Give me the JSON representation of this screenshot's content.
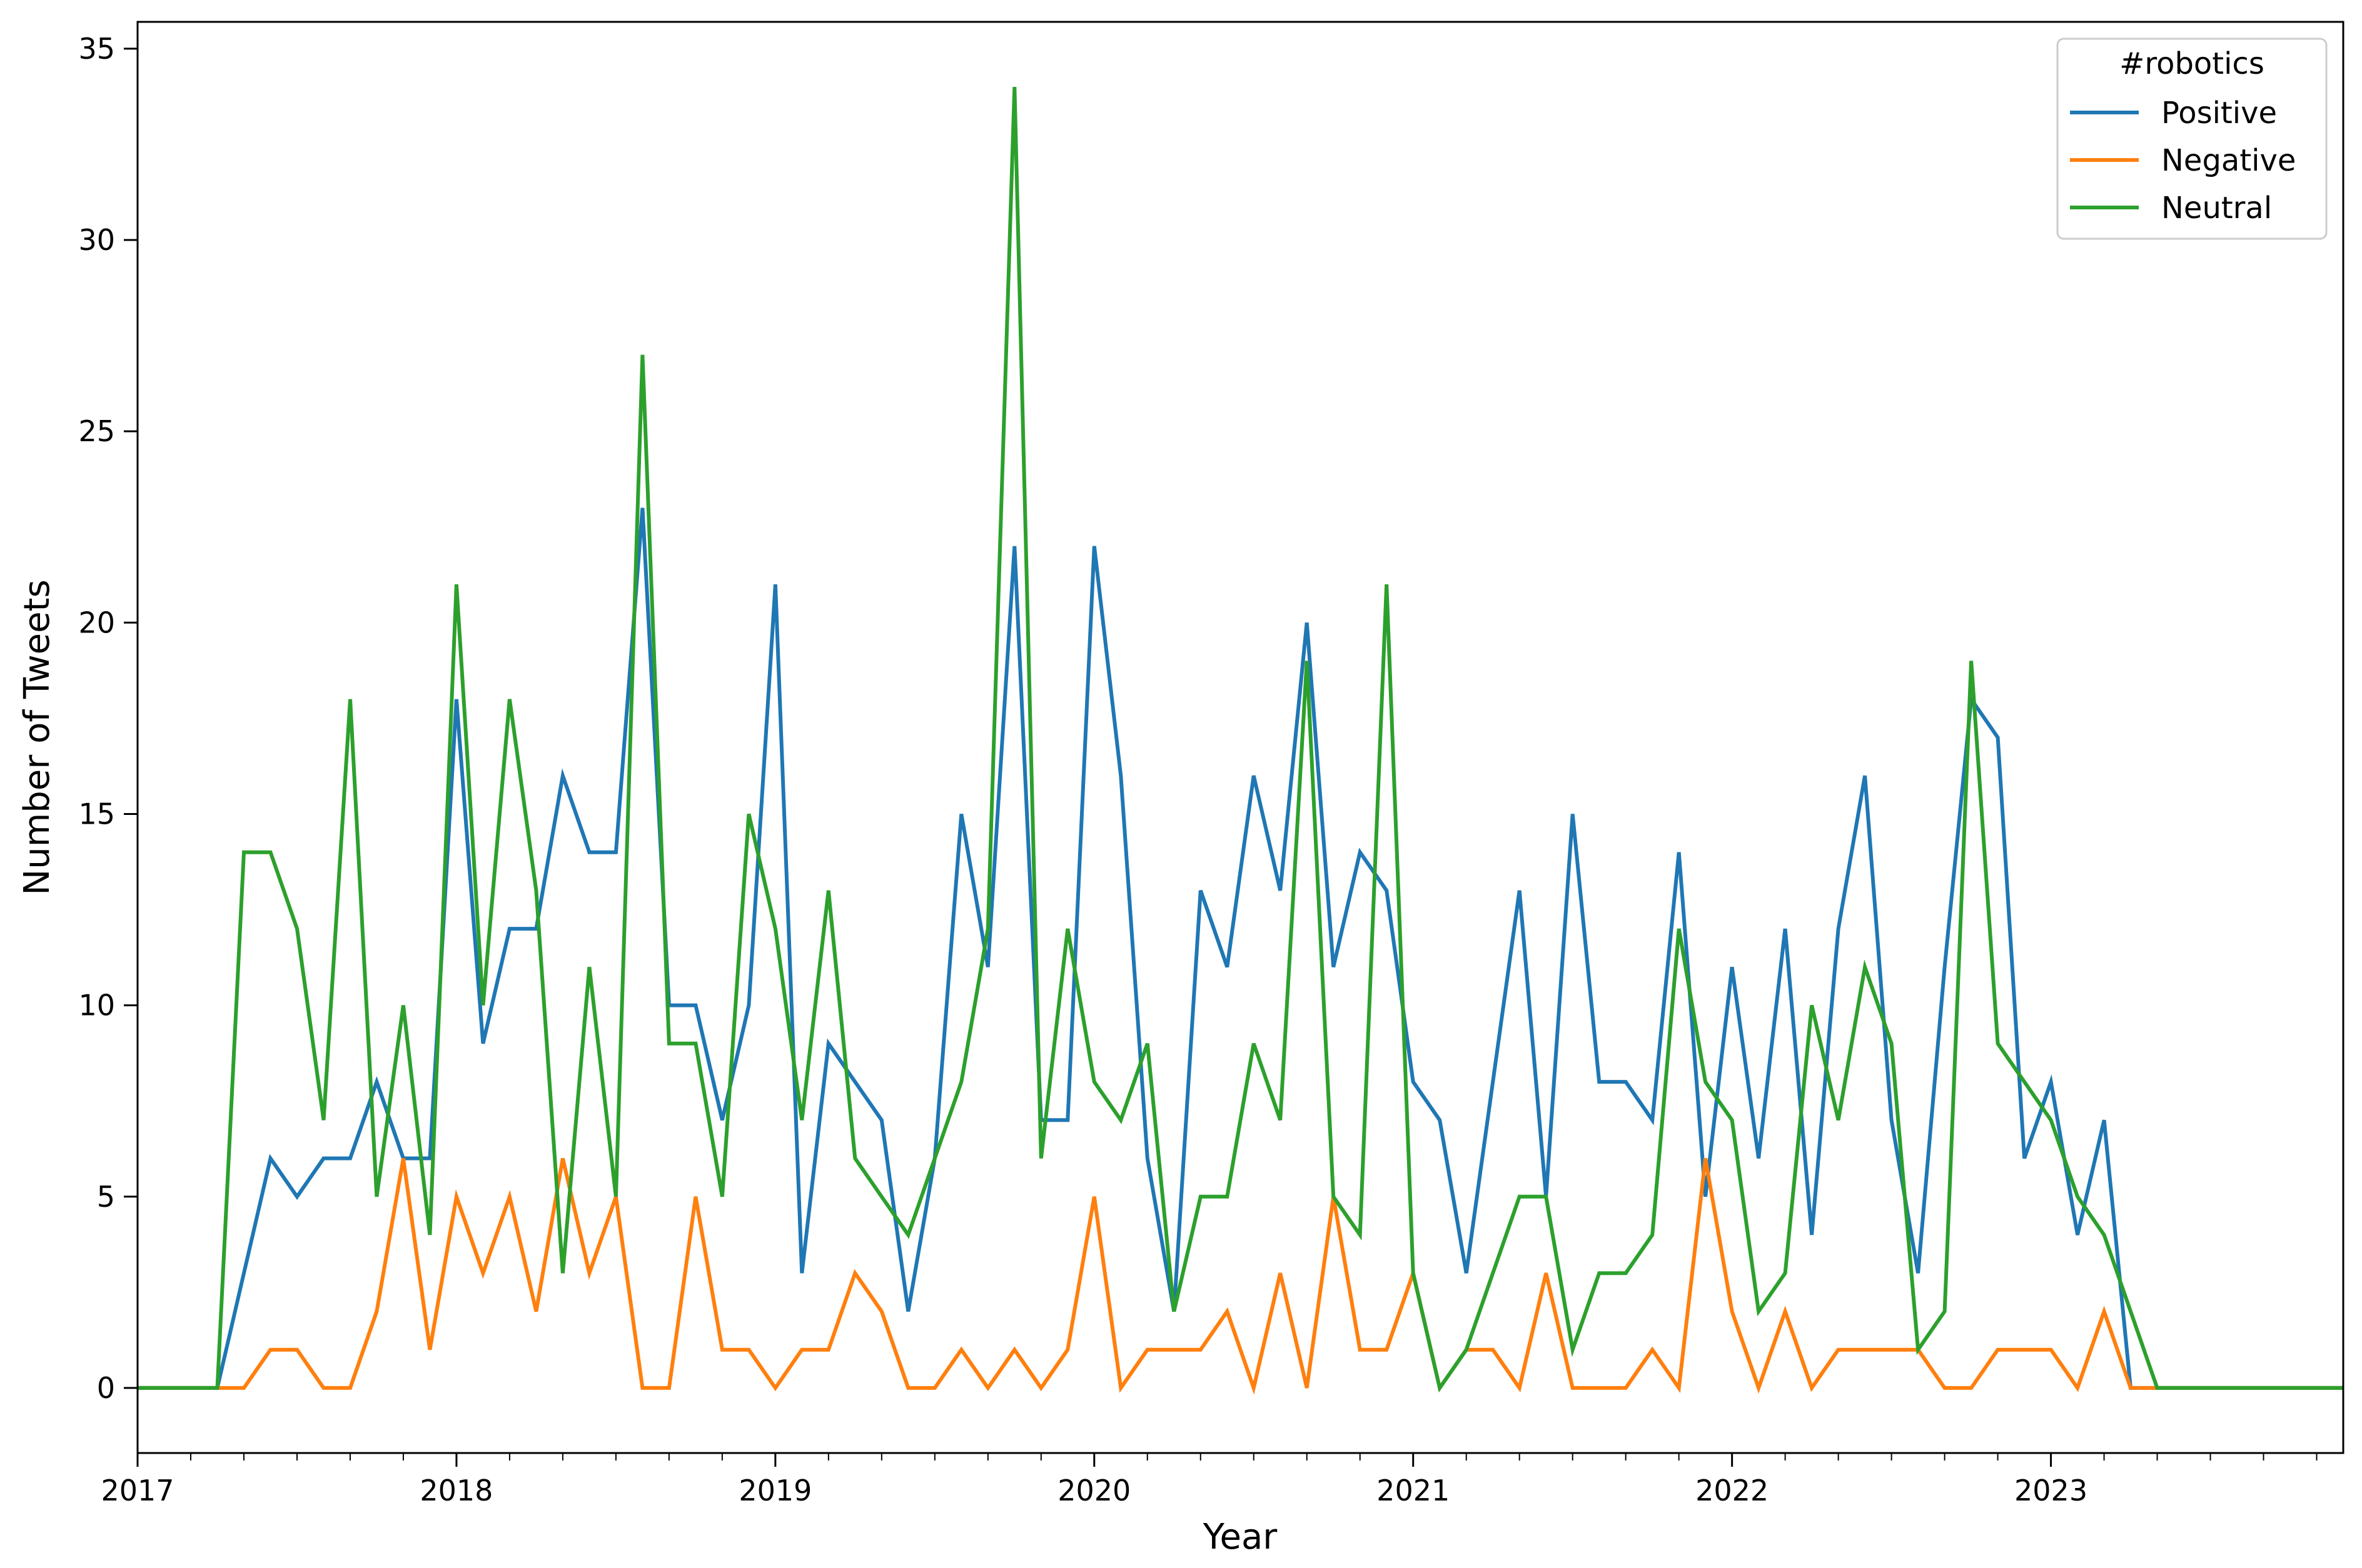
{
  "chart_data": {
    "type": "line",
    "title": "",
    "xlabel": "Year",
    "ylabel": "Number of Tweets",
    "x_ticks": [
      "2017",
      "2018",
      "2019",
      "2020",
      "2021",
      "2022",
      "2023"
    ],
    "y_ticks": [
      "0",
      "5",
      "10",
      "15",
      "20",
      "25",
      "30",
      "35"
    ],
    "xlim": [
      "2017-01",
      "2023-12"
    ],
    "ylim": [
      -1.7,
      35.7
    ],
    "grid": false,
    "legend": {
      "title": "#robotics",
      "placement": "top-right"
    },
    "x": [
      "2017-01",
      "2017-02",
      "2017-03",
      "2017-04",
      "2017-05",
      "2017-06",
      "2017-07",
      "2017-08",
      "2017-09",
      "2017-10",
      "2017-11",
      "2017-12",
      "2018-01",
      "2018-02",
      "2018-03",
      "2018-04",
      "2018-05",
      "2018-06",
      "2018-07",
      "2018-08",
      "2018-09",
      "2018-10",
      "2018-11",
      "2018-12",
      "2019-01",
      "2019-02",
      "2019-03",
      "2019-04",
      "2019-05",
      "2019-06",
      "2019-07",
      "2019-08",
      "2019-09",
      "2019-10",
      "2019-11",
      "2019-12",
      "2020-01",
      "2020-02",
      "2020-03",
      "2020-04",
      "2020-05",
      "2020-06",
      "2020-07",
      "2020-08",
      "2020-09",
      "2020-10",
      "2020-11",
      "2020-12",
      "2021-01",
      "2021-02",
      "2021-03",
      "2021-04",
      "2021-05",
      "2021-06",
      "2021-07",
      "2021-08",
      "2021-09",
      "2021-10",
      "2021-11",
      "2021-12",
      "2022-01",
      "2022-02",
      "2022-03",
      "2022-04",
      "2022-05",
      "2022-06",
      "2022-07",
      "2022-08",
      "2022-09",
      "2022-10",
      "2022-11",
      "2022-12",
      "2023-01",
      "2023-02",
      "2023-03",
      "2023-04",
      "2023-05",
      "2023-06",
      "2023-07",
      "2023-08",
      "2023-09",
      "2023-10",
      "2023-11",
      "2023-12"
    ],
    "series": [
      {
        "name": "Positive",
        "color": "#1f77b4",
        "values": [
          0,
          0,
          0,
          0,
          3,
          6,
          5,
          6,
          6,
          8,
          6,
          6,
          18,
          9,
          12,
          12,
          16,
          14,
          14,
          23,
          10,
          10,
          7,
          10,
          21,
          3,
          9,
          8,
          7,
          2,
          6,
          15,
          11,
          22,
          7,
          7,
          22,
          16,
          6,
          2,
          13,
          11,
          16,
          13,
          20,
          11,
          14,
          13,
          8,
          7,
          3,
          8,
          13,
          5,
          15,
          8,
          8,
          7,
          14,
          5,
          11,
          6,
          12,
          4,
          12,
          16,
          7,
          3,
          11,
          18,
          17,
          6,
          8,
          4,
          7,
          0,
          0,
          0,
          0,
          0,
          0,
          0,
          0,
          0
        ]
      },
      {
        "name": "Negative",
        "color": "#ff7f0e",
        "values": [
          0,
          0,
          0,
          0,
          0,
          1,
          1,
          0,
          0,
          2,
          6,
          1,
          5,
          3,
          5,
          2,
          6,
          3,
          5,
          0,
          0,
          5,
          1,
          1,
          0,
          1,
          1,
          3,
          2,
          0,
          0,
          1,
          0,
          1,
          0,
          1,
          5,
          0,
          1,
          1,
          1,
          2,
          0,
          3,
          0,
          5,
          1,
          1,
          3,
          0,
          1,
          1,
          0,
          3,
          0,
          0,
          0,
          1,
          0,
          6,
          2,
          0,
          2,
          0,
          1,
          1,
          1,
          1,
          0,
          0,
          1,
          1,
          1,
          0,
          2,
          0,
          0,
          0,
          0,
          0,
          0,
          0,
          0,
          0
        ]
      },
      {
        "name": "Neutral",
        "color": "#2ca02c",
        "values": [
          0,
          0,
          0,
          0,
          14,
          14,
          12,
          7,
          18,
          5,
          10,
          4,
          21,
          10,
          18,
          13,
          3,
          11,
          5,
          27,
          9,
          9,
          5,
          15,
          12,
          7,
          13,
          6,
          5,
          4,
          6,
          8,
          12,
          34,
          6,
          12,
          8,
          7,
          9,
          2,
          5,
          5,
          9,
          7,
          19,
          5,
          4,
          21,
          3,
          0,
          1,
          3,
          5,
          5,
          1,
          3,
          3,
          4,
          12,
          8,
          7,
          2,
          3,
          10,
          7,
          11,
          9,
          1,
          2,
          19,
          9,
          8,
          7,
          5,
          4,
          2,
          0,
          0,
          0,
          0,
          0,
          0,
          0,
          0
        ]
      }
    ]
  }
}
